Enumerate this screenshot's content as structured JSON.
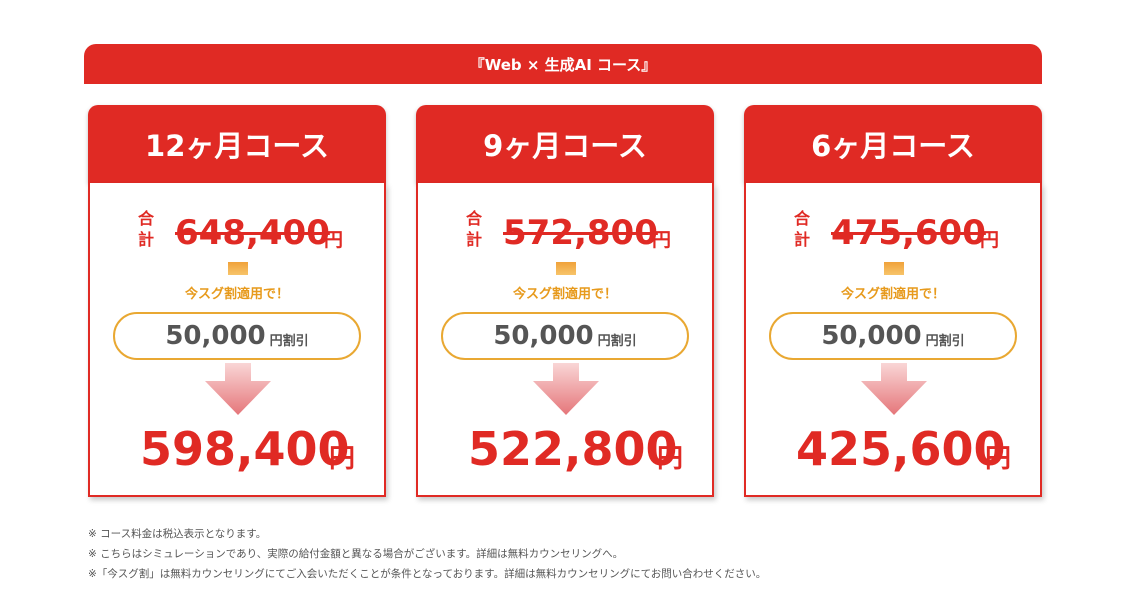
{
  "banner": {
    "title": "『Web × 生成AI コース』"
  },
  "cards": [
    {
      "title": "12ヶ月コース",
      "total_label": "合計",
      "original_price": "648,400",
      "original_unit": "円",
      "promo_text": "今スグ割適用で！",
      "discount_amount": "50,000",
      "discount_unit": "円割引",
      "final_price": "598,400",
      "final_unit": "円"
    },
    {
      "title": "9ヶ月コース",
      "total_label": "合計",
      "original_price": "572,800",
      "original_unit": "円",
      "promo_text": "今スグ割適用で！",
      "discount_amount": "50,000",
      "discount_unit": "円割引",
      "final_price": "522,800",
      "final_unit": "円"
    },
    {
      "title": "6ヶ月コース",
      "total_label": "合計",
      "original_price": "475,600",
      "original_unit": "円",
      "promo_text": "今スグ割適用で！",
      "discount_amount": "50,000",
      "discount_unit": "円割引",
      "final_price": "425,600",
      "final_unit": "円"
    }
  ],
  "notes": [
    "※ コース料金は税込表示となります。",
    "※ こちらはシミュレーションであり、実際の給付金額と異なる場合がございます。詳細は無料カウンセリングへ。",
    "※「今スグ割」は無料カウンセリングにてご入会いただくことが条件となっております。詳細は無料カウンセリングにてお問い合わせください。"
  ],
  "colors": {
    "primary_red": "#e02a24",
    "accent_orange": "#e9a832",
    "arrow_pink": "#e8868a"
  }
}
